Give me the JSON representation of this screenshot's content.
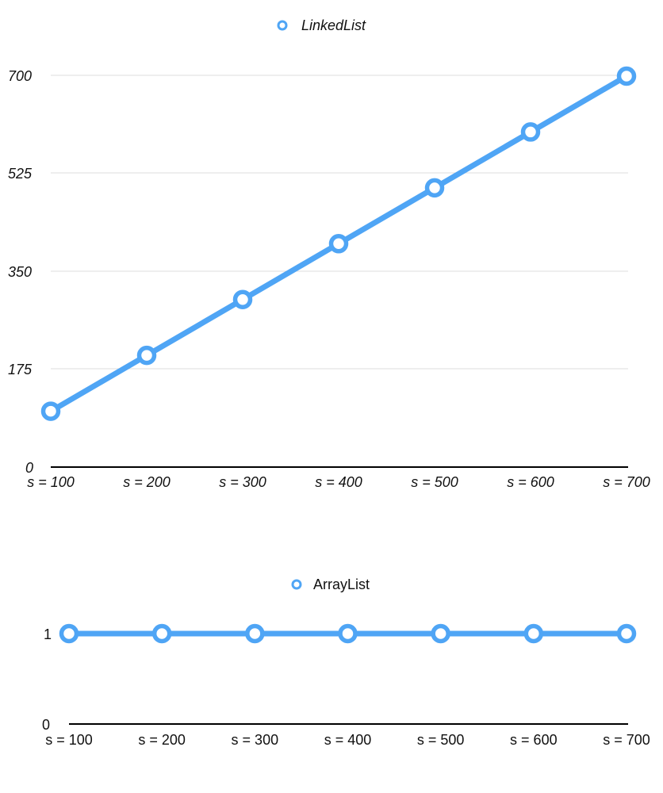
{
  "chart_data": [
    {
      "type": "line",
      "categories": [
        "s = 100",
        "s = 200",
        "s = 300",
        "s = 400",
        "s = 500",
        "s = 600",
        "s = 700"
      ],
      "series": [
        {
          "name": "LinkedList",
          "values": [
            100,
            200,
            300,
            400,
            500,
            600,
            700
          ]
        }
      ],
      "yticks": [
        "0",
        "175",
        "350",
        "525",
        "700"
      ],
      "ylim": [
        0,
        700
      ],
      "grid": true,
      "legend": "top-center",
      "italic": true,
      "color": "#4fa5f5"
    },
    {
      "type": "line",
      "categories": [
        "s = 100",
        "s = 200",
        "s = 300",
        "s = 400",
        "s = 500",
        "s = 600",
        "s = 700"
      ],
      "series": [
        {
          "name": "ArrayList",
          "values": [
            1,
            1,
            1,
            1,
            1,
            1,
            1
          ]
        }
      ],
      "yticks": [
        "0",
        "1"
      ],
      "ylim": [
        0,
        1
      ],
      "grid": false,
      "legend": "top-center",
      "italic": false,
      "color": "#4fa5f5"
    }
  ]
}
